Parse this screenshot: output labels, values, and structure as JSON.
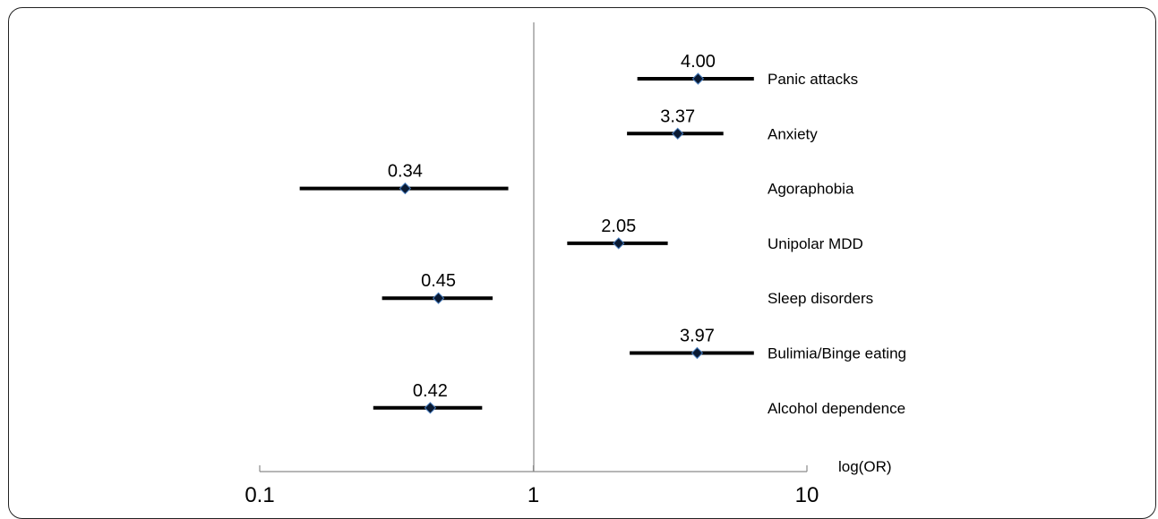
{
  "chart_data": {
    "type": "forest",
    "title": "",
    "xlabel": "log(OR)",
    "ylabel": "",
    "x_scale": "log",
    "xlim": [
      0.1,
      10
    ],
    "x_ticks": [
      "0.1",
      "1",
      "10"
    ],
    "reference_line": 1,
    "grid": false,
    "categories": [
      "Panic attacks",
      "Anxiety",
      "Agoraphobia",
      "Unipolar MDD",
      "Sleep disorders",
      "Bulimia/Binge eating",
      "Alcohol dependence"
    ],
    "values": [
      4.0,
      3.37,
      0.34,
      2.05,
      0.45,
      3.97,
      0.42
    ],
    "value_labels": [
      "4.00",
      "3.37",
      "0.34",
      "2.05",
      "0.45",
      "3.97",
      "0.42"
    ],
    "ci_lower": [
      2.4,
      2.2,
      0.14,
      1.33,
      0.28,
      2.25,
      0.26
    ],
    "ci_upper": [
      6.4,
      4.95,
      0.81,
      3.1,
      0.71,
      6.4,
      0.65
    ]
  }
}
